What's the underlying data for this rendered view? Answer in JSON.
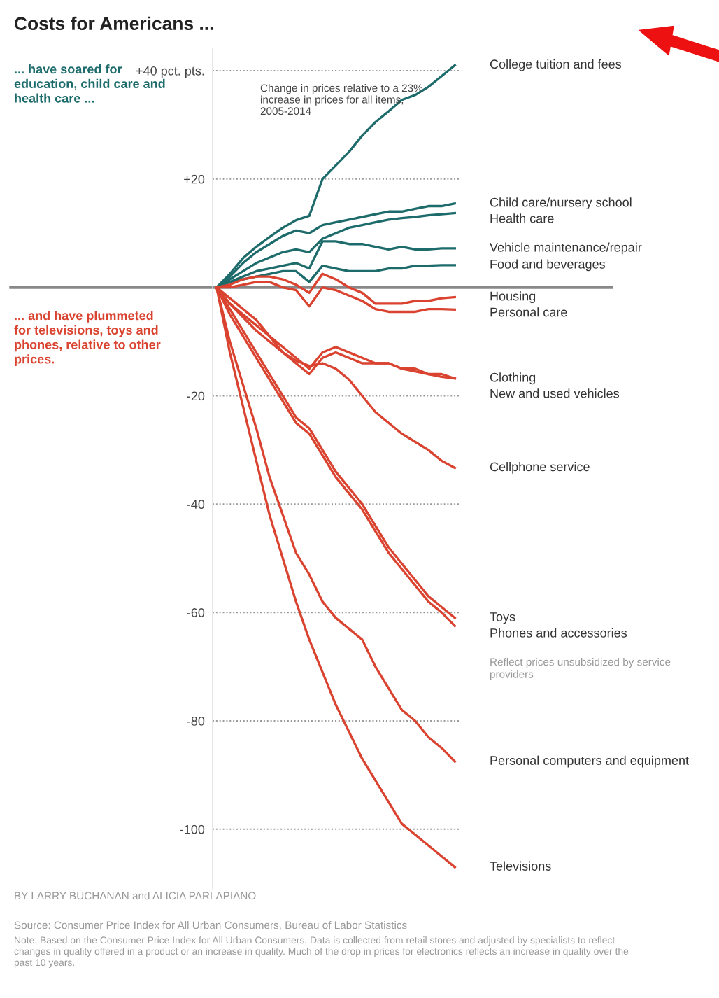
{
  "chart_data": {
    "type": "line",
    "title": "Costs for Americans ...",
    "subtitle": "Change in prices relative to a 23% increase in prices for all items, 2005-2014",
    "categories": [
      null,
      null,
      null,
      null,
      null,
      null,
      null,
      null,
      null,
      null,
      null,
      null,
      null,
      null,
      null,
      null,
      null,
      null,
      null
    ],
    "ylim": [
      -111,
      44
    ],
    "yticks": [
      {
        "value": 40,
        "label": "+40 pct. pts."
      },
      {
        "value": 20,
        "label": "+20"
      },
      -20,
      -40,
      -60,
      -80,
      -100
    ],
    "grid": "y",
    "legend": false,
    "tick_labels": "y",
    "ref_lines": [
      {
        "axis": "y",
        "value": 0,
        "label": null,
        "color": "#888888"
      }
    ],
    "series": [
      {
        "name": "College tuition and fees",
        "color": "#1d6b6b",
        "values": [
          0,
          2.5,
          5.4,
          7.5,
          9.3,
          11,
          12.4,
          13.2,
          20,
          22.5,
          25,
          28,
          30.5,
          32.5,
          34.6,
          35.5,
          37,
          39,
          41
        ]
      },
      {
        "name": "Child care/nursery school",
        "color": "#1d6b6b",
        "values": [
          0,
          2,
          4.5,
          6.5,
          8,
          9.5,
          10.5,
          10,
          11.5,
          12,
          12.5,
          13,
          13.5,
          14,
          14,
          14.5,
          15,
          15,
          15.5
        ]
      },
      {
        "name": "Health care",
        "color": "#1d6b6b",
        "values": [
          0,
          1.5,
          3,
          4.5,
          5.5,
          6.5,
          7,
          6.5,
          9,
          10,
          11,
          11.5,
          12,
          12.5,
          12.8,
          13,
          13.3,
          13.5,
          13.7
        ]
      },
      {
        "name": "Vehicle maintenance/repair",
        "color": "#1d6b6b",
        "values": [
          0,
          1,
          2,
          3,
          3.5,
          4,
          4.5,
          3.5,
          8.5,
          8.5,
          8,
          8,
          7.5,
          7,
          7.5,
          7,
          7,
          7.2,
          7.2
        ]
      },
      {
        "name": "Food and beverages",
        "color": "#1d6b6b",
        "values": [
          0,
          1,
          1.5,
          2,
          2.5,
          3,
          3,
          1,
          4,
          3.5,
          3,
          3,
          3,
          3.5,
          3.5,
          4,
          4,
          4.1,
          4.1
        ]
      },
      {
        "name": "Housing",
        "color": "#d9432f",
        "values": [
          0,
          0.5,
          1.5,
          2,
          2,
          1.5,
          0.5,
          -1,
          2.5,
          1.5,
          0,
          -1,
          -3,
          -3,
          -3,
          -2.5,
          -2.5,
          -2,
          -1.8
        ]
      },
      {
        "name": "Personal care",
        "color": "#d9432f",
        "values": [
          0,
          0,
          0.5,
          1,
          1,
          0,
          -0.5,
          -3.5,
          0,
          -0.5,
          -1.5,
          -2.5,
          -4,
          -4.5,
          -4.5,
          -4.5,
          -4,
          -4,
          -4.1
        ]
      },
      {
        "name": "Clothing",
        "color": "#d9432f",
        "values": [
          0,
          -3,
          -5,
          -7,
          -9,
          -12,
          -14,
          -16,
          -13,
          -12,
          -13,
          -14,
          -14,
          -14,
          -15,
          -15,
          -16,
          -16,
          -16.8
        ]
      },
      {
        "name": "New and used vehicles",
        "color": "#d9432f",
        "values": [
          0,
          -2,
          -4,
          -6,
          -9,
          -11,
          -13,
          -15,
          -12,
          -11,
          -12,
          -13,
          -14,
          -14,
          -15,
          -15.5,
          -16,
          -16.5,
          -16.8
        ]
      },
      {
        "name": "Cellphone service",
        "color": "#d9432f",
        "values": [
          0,
          -3,
          -5.5,
          -8,
          -10,
          -12,
          -13.5,
          -14.5,
          -14,
          -15,
          -17,
          -20,
          -23,
          -25,
          -27,
          -28.5,
          -30,
          -32,
          -33.3
        ]
      },
      {
        "name": "Toys",
        "color": "#d9432f",
        "values": [
          0,
          -4,
          -8,
          -12,
          -16,
          -20,
          -24,
          -26,
          -30,
          -34,
          -37,
          -40,
          -44,
          -48,
          -51,
          -54,
          -57,
          -59,
          -61
        ]
      },
      {
        "name": "Phones and accessories",
        "color": "#d9432f",
        "values": [
          0,
          -5,
          -9,
          -13,
          -17,
          -21,
          -25,
          -27,
          -31,
          -35,
          -38,
          -41,
          -45,
          -49,
          -52,
          -55,
          -58,
          -60,
          -62.5
        ]
      },
      {
        "name": "Personal computers and equipment",
        "color": "#d9432f",
        "values": [
          0,
          -10,
          -18,
          -26,
          -35,
          -42,
          -49,
          -53,
          -58,
          -61,
          -63,
          -65,
          -70,
          -74,
          -78,
          -80,
          -83,
          -85,
          -87.5
        ]
      },
      {
        "name": "Televisions",
        "color": "#d9432f",
        "values": [
          0,
          -12,
          -22,
          -32,
          -42,
          -50,
          -58,
          -65,
          -71,
          -77,
          -82,
          -87,
          -91,
          -95,
          -99,
          -101,
          -103,
          -105,
          -107
        ]
      }
    ],
    "annotations": [
      "... have soared for education, child care and health care ...",
      "... and have plummeted for televisions, toys and phones, relative to other prices.",
      "Reflect prices unsubsidized by service providers",
      "BY LARRY BUCHANAN and ALICIA PARLAPIANO",
      "Source: Consumer Price Index for All Urban Consumers, Bureau of Labor Statistics",
      "Note: Based on the Consumer Price Index for All Urban Consumers. Data is collected from retail stores and adjusted by specialists to reflect changes in quality offered in a product or an increase in quality. Much of the drop in prices for electronics reflects an increase in quality over the past 10 years."
    ]
  }
}
